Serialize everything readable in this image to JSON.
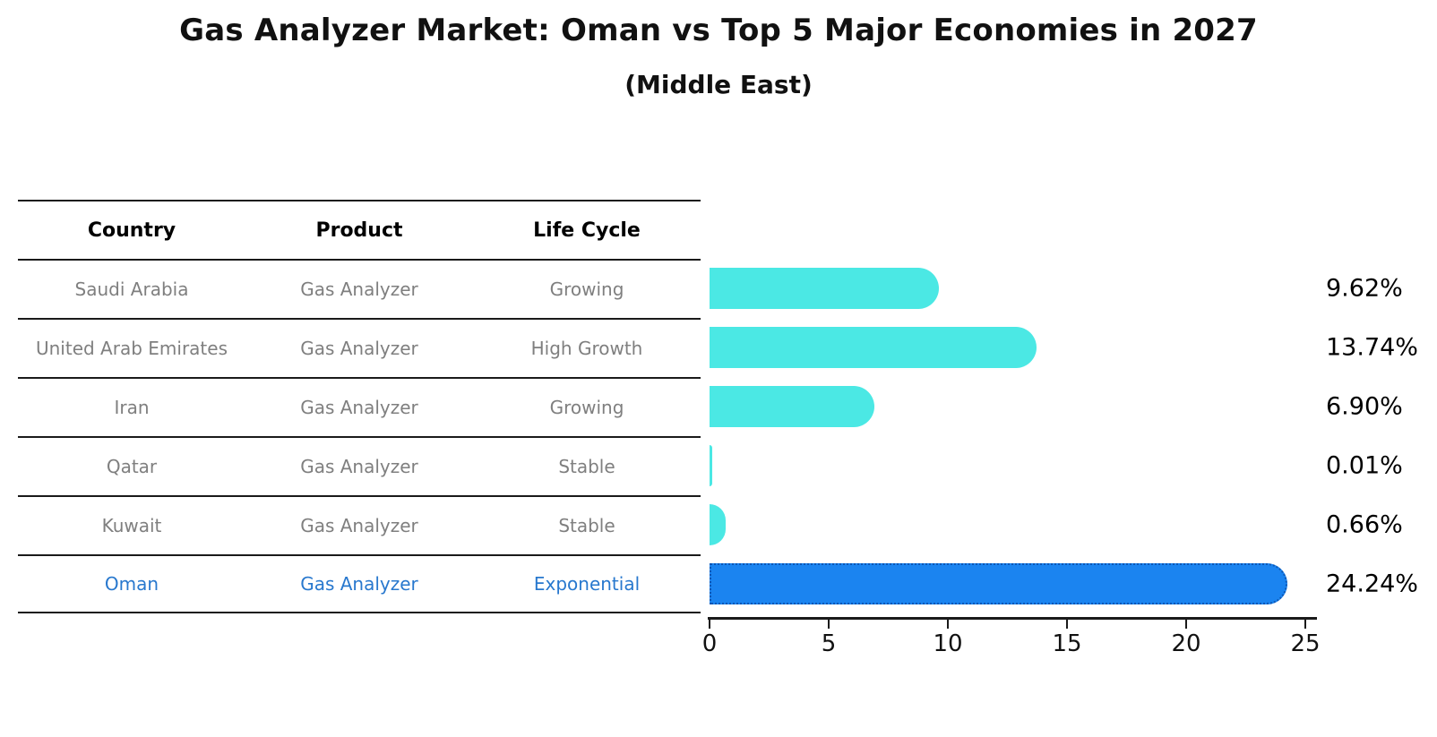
{
  "title": "Gas Analyzer Market: Oman vs Top 5 Major Economies in 2027",
  "subtitle": "(Middle East)",
  "table": {
    "headers": [
      "Country",
      "Product",
      "Life Cycle"
    ],
    "rows": [
      {
        "country": "Saudi Arabia",
        "product": "Gas Analyzer",
        "life_cycle": "Growing"
      },
      {
        "country": "United Arab Emirates",
        "product": "Gas Analyzer",
        "life_cycle": "High Growth"
      },
      {
        "country": "Iran",
        "product": "Gas Analyzer",
        "life_cycle": "Growing"
      },
      {
        "country": "Qatar",
        "product": "Gas Analyzer",
        "life_cycle": "Stable"
      },
      {
        "country": "Kuwait",
        "product": "Gas Analyzer",
        "life_cycle": "Stable"
      },
      {
        "country": "Oman",
        "product": "Gas Analyzer",
        "life_cycle": "Exponential"
      }
    ],
    "highlight_row": "Oman"
  },
  "chart_data": {
    "type": "bar",
    "orientation": "horizontal",
    "categories": [
      "Saudi Arabia",
      "United Arab Emirates",
      "Iran",
      "Qatar",
      "Kuwait",
      "Oman"
    ],
    "values": [
      9.62,
      13.74,
      6.9,
      0.01,
      0.66,
      24.24
    ],
    "value_labels": [
      "9.62%",
      "13.74%",
      "6.90%",
      "0.01%",
      "0.66%",
      "24.24%"
    ],
    "xlim": [
      0,
      25
    ],
    "x_ticks": [
      "0",
      "5",
      "10",
      "15",
      "20",
      "25"
    ],
    "grid": false,
    "legend": false,
    "highlight_index": 5,
    "bar_color": "#4BE8E4",
    "highlight_bar_color": "#1B84F0",
    "highlight_border_color": "#0d57b5",
    "value_label_color": "#000000",
    "axis_color": "#1a1a1a"
  },
  "colors": {
    "background": "#ffffff",
    "title_text": "#111111",
    "table_header_text": "#000000",
    "table_body_text": "#7f7f7f",
    "highlight_text": "#2878CE"
  }
}
